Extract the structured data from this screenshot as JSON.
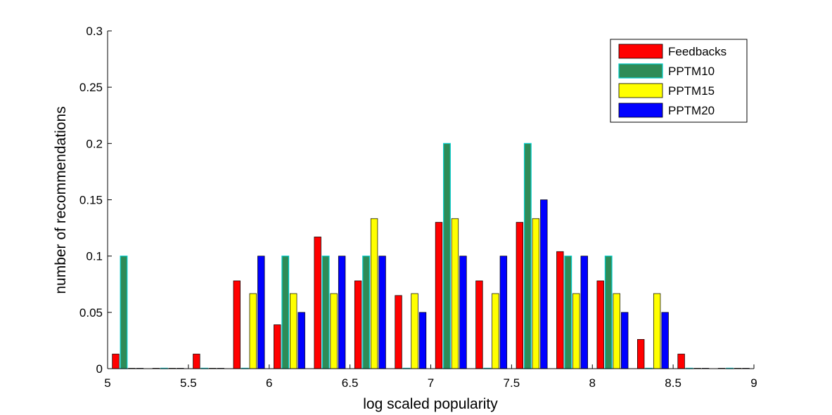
{
  "chart_data": {
    "type": "bar",
    "xlabel": "log scaled popularity",
    "ylabel": "number of recommendations",
    "xlim": [
      5,
      9
    ],
    "ylim": [
      0,
      0.3
    ],
    "xticks": [
      "5",
      "5.5",
      "6",
      "6.5",
      "7",
      "7.5",
      "8",
      "8.5",
      "9"
    ],
    "yticks": [
      "0",
      "0.05",
      "0.1",
      "0.15",
      "0.2",
      "0.25",
      "0.3"
    ],
    "legend_position": "top-right",
    "bin_centers": [
      5.125,
      5.375,
      5.625,
      5.875,
      6.125,
      6.375,
      6.625,
      6.875,
      7.125,
      7.375,
      7.625,
      7.875,
      8.125,
      8.375,
      8.625,
      8.875
    ],
    "series": [
      {
        "name": "Feedbacks",
        "color": "#ff0000",
        "values": [
          0.013,
          0,
          0.013,
          0.078,
          0.039,
          0.117,
          0.078,
          0.065,
          0.13,
          0.078,
          0.13,
          0.104,
          0.078,
          0.026,
          0.013,
          0
        ]
      },
      {
        "name": "PPTM10",
        "color": "#2e8b57",
        "edge": "#00cccc",
        "values": [
          0.1,
          0,
          0,
          0,
          0.1,
          0.1,
          0.1,
          0,
          0.2,
          0,
          0.2,
          0.1,
          0.1,
          0,
          0,
          0
        ]
      },
      {
        "name": "PPTM15",
        "color": "#ffff00",
        "values": [
          0,
          0,
          0,
          0.0667,
          0.0667,
          0.0667,
          0.1333,
          0.0667,
          0.1333,
          0.0667,
          0.1333,
          0.0667,
          0.0667,
          0.0667,
          0,
          0
        ]
      },
      {
        "name": "PPTM20",
        "color": "#0000ff",
        "values": [
          0,
          0,
          0,
          0.1,
          0.05,
          0.1,
          0.1,
          0.05,
          0.1,
          0.1,
          0.15,
          0.1,
          0.05,
          0.05,
          0,
          0
        ]
      }
    ]
  }
}
